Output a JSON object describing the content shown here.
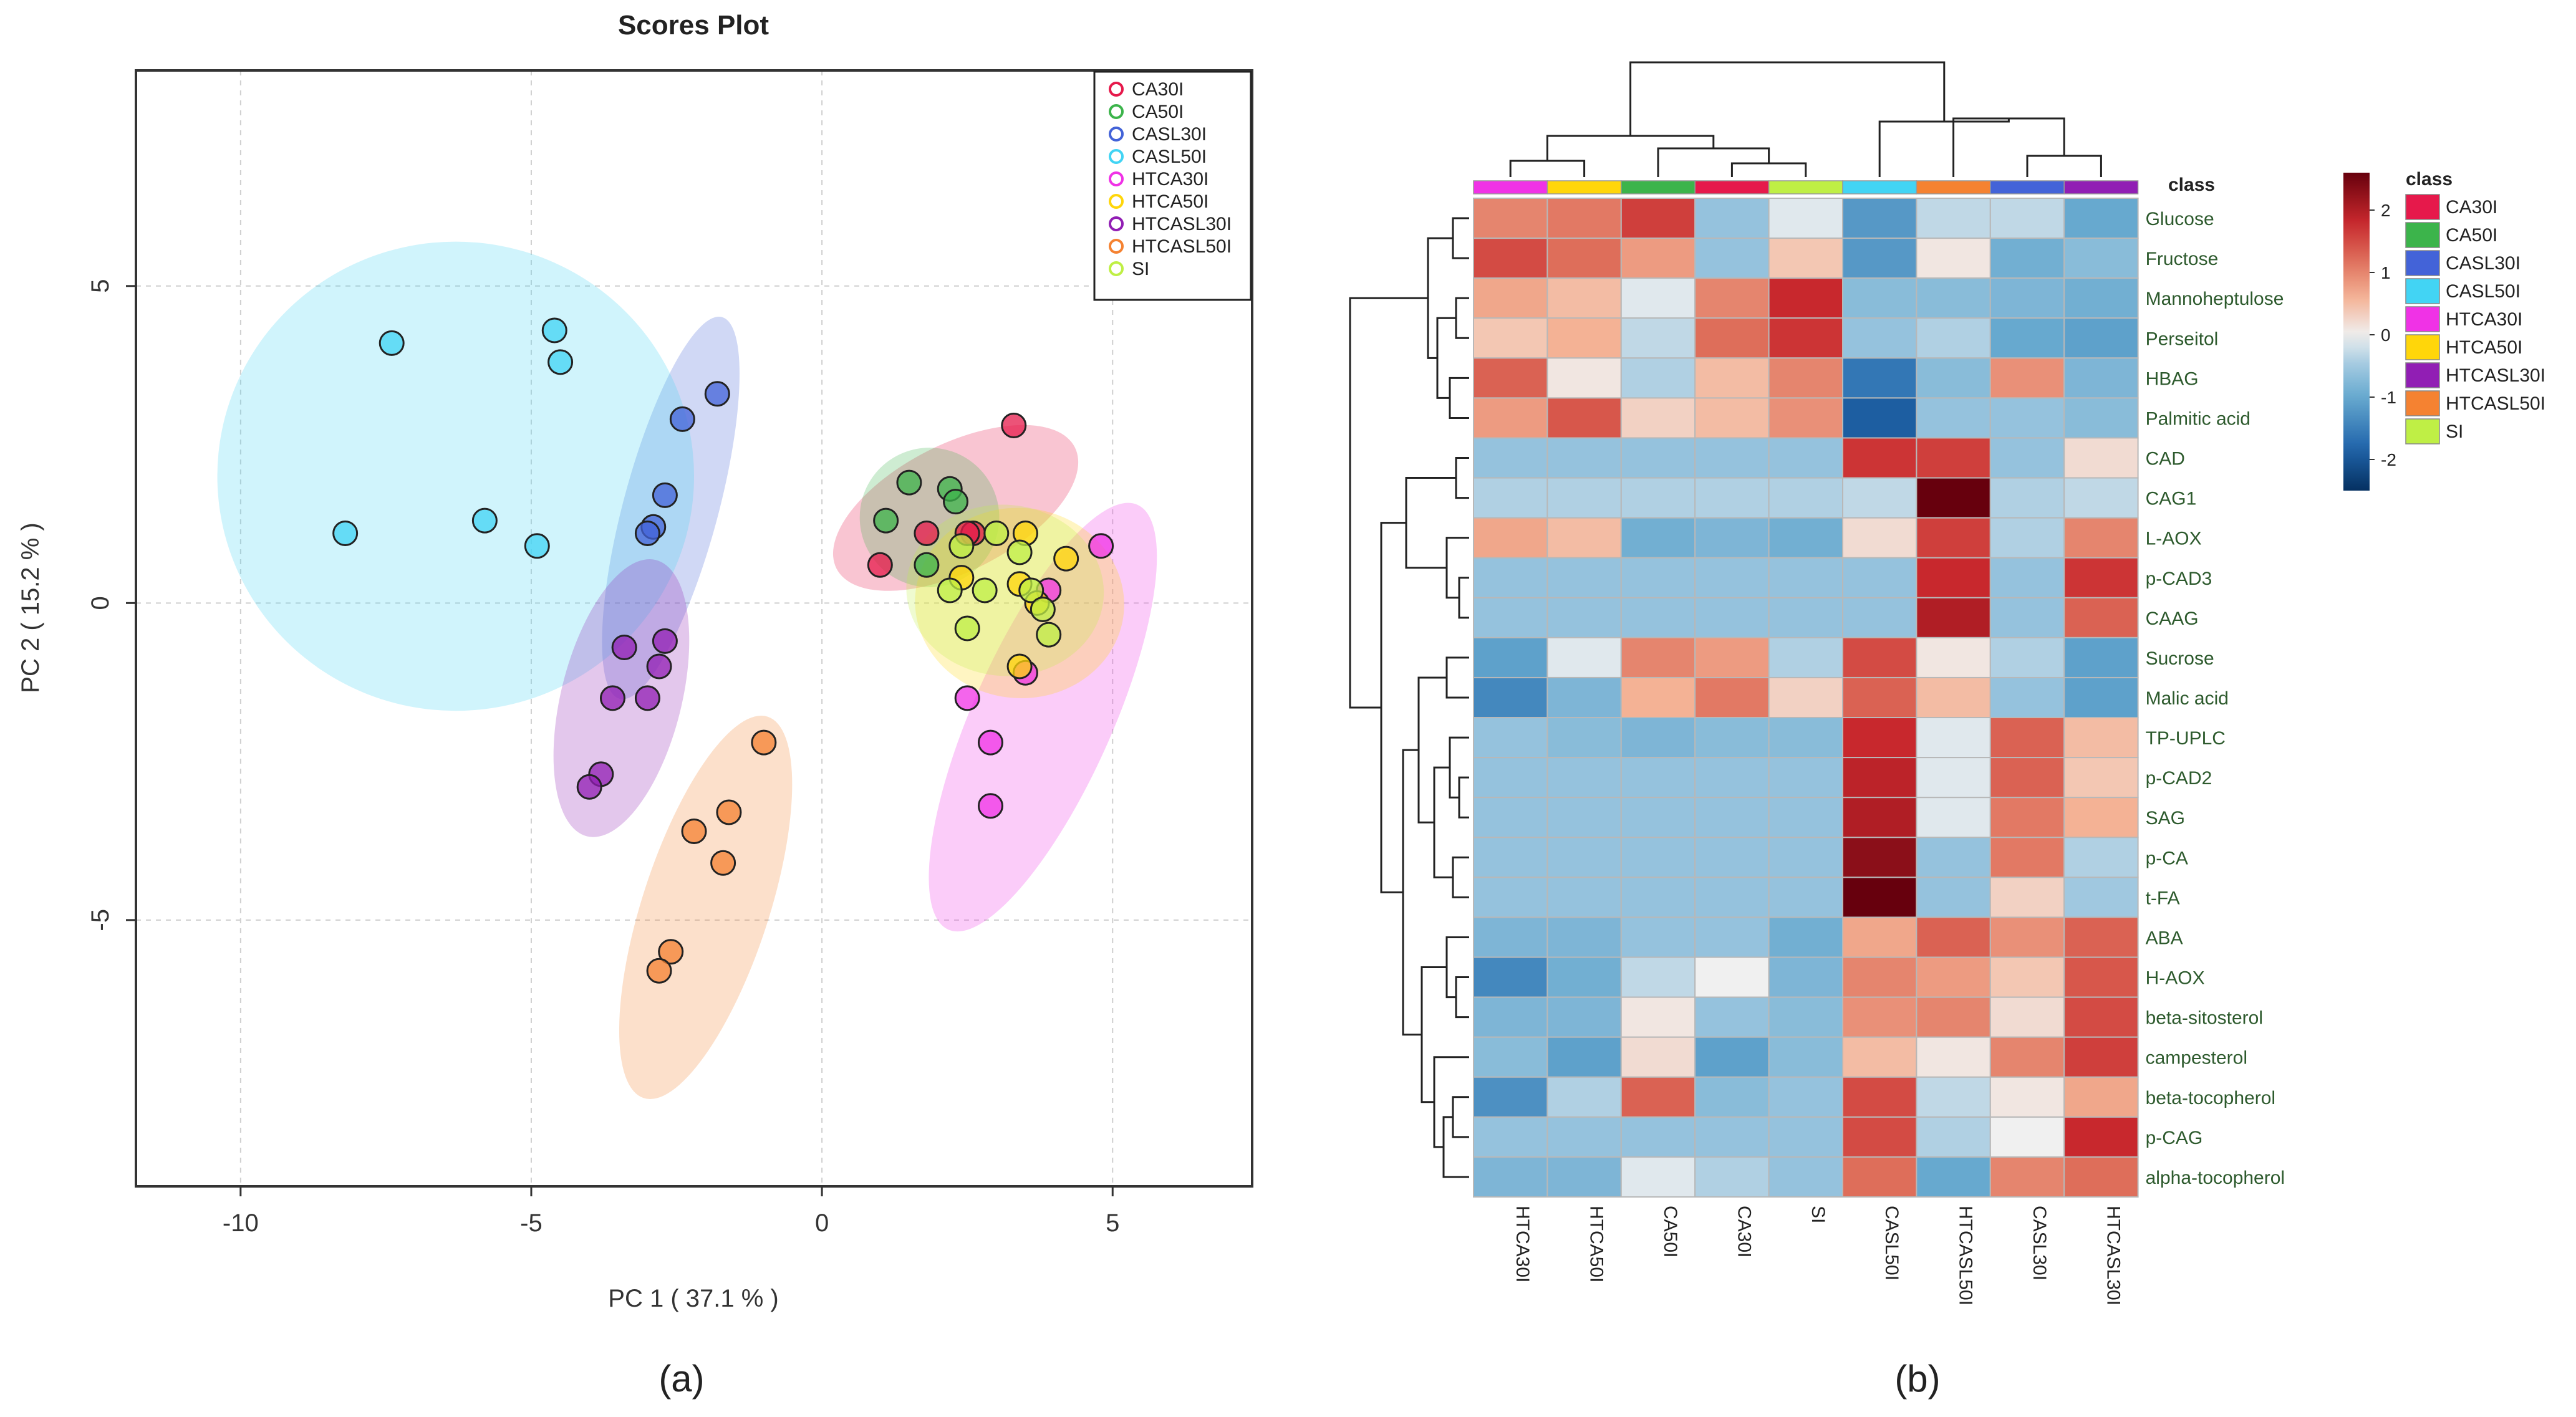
{
  "colors": {
    "CA30I": "#e6194b",
    "CA50I": "#3cb44b",
    "CASL30I": "#4363d8",
    "CASL50I": "#42d4f4",
    "HTCA30I": "#f032e6",
    "HTCA50I": "#ffd60a",
    "HTCASL30I": "#911eb4",
    "HTCASL50I": "#f58231",
    "SI": "#bfef45"
  },
  "chart_data": [
    {
      "type": "scatter",
      "title": "Scores Plot",
      "xlabel": "PC 1 ( 37.1 % )",
      "ylabel": "PC 2 ( 15.2 % )",
      "xlim": [
        -11.8,
        7.4
      ],
      "ylim": [
        -9.2,
        8.4
      ],
      "xticks": [
        -10,
        -5,
        0,
        5
      ],
      "yticks": [
        5,
        0,
        -5
      ],
      "grid": true,
      "legend_position": "top-right",
      "caption": "(a)",
      "series": [
        {
          "name": "CA30I",
          "x": [
            3.3,
            1.0,
            1.8,
            2.6,
            2.5
          ],
          "y": [
            2.8,
            0.6,
            1.1,
            1.1,
            1.1
          ],
          "ellipse": {
            "cx": 2.3,
            "cy": 1.5,
            "rx": 4.6,
            "ry": 1.0,
            "angle": 27
          }
        },
        {
          "name": "CA50I",
          "x": [
            1.1,
            1.5,
            2.2,
            2.3,
            1.8
          ],
          "y": [
            1.3,
            1.9,
            1.8,
            1.6,
            0.6
          ],
          "ellipse": {
            "cx": 1.85,
            "cy": 1.35,
            "rx": 2.4,
            "ry": 1.1,
            "angle": -20
          }
        },
        {
          "name": "CASL30I",
          "x": [
            -1.8,
            -2.4,
            -2.7,
            -2.9,
            -3.0
          ],
          "y": [
            3.3,
            2.9,
            1.7,
            1.2,
            1.1
          ],
          "ellipse": {
            "cx": -2.6,
            "cy": 1.5,
            "rx": 6.8,
            "ry": 0.75,
            "angle": 75
          }
        },
        {
          "name": "CASL50I",
          "x": [
            -7.4,
            -4.6,
            -4.5,
            -5.8,
            -4.9,
            -8.2
          ],
          "y": [
            4.1,
            4.3,
            3.8,
            1.3,
            0.9,
            1.1
          ],
          "ellipse": {
            "cx": -6.3,
            "cy": 2.0,
            "rx": 8.2,
            "ry": 3.7,
            "angle": 0
          }
        },
        {
          "name": "HTCA30I",
          "x": [
            4.8,
            3.9,
            3.5,
            2.5,
            2.9,
            2.9
          ],
          "y": [
            0.9,
            0.2,
            -1.1,
            -1.5,
            -2.2,
            -3.2
          ],
          "ellipse": {
            "cx": 3.8,
            "cy": -1.8,
            "rx": 8.0,
            "ry": 1.1,
            "angle": 66
          }
        },
        {
          "name": "HTCA50I",
          "x": [
            3.5,
            4.2,
            2.4,
            3.4,
            3.7,
            3.4
          ],
          "y": [
            1.1,
            0.7,
            0.4,
            0.3,
            0.0,
            -1.0
          ],
          "ellipse": {
            "cx": 3.4,
            "cy": 0.0,
            "rx": 3.6,
            "ry": 1.5,
            "angle": -5
          }
        },
        {
          "name": "HTCASL30I",
          "x": [
            -2.7,
            -2.8,
            -3.4,
            -3.0,
            -3.6,
            -3.8,
            -4.0
          ],
          "y": [
            -0.6,
            -1.0,
            -0.7,
            -1.5,
            -1.5,
            -2.7,
            -2.9
          ],
          "ellipse": {
            "cx": -3.45,
            "cy": -1.5,
            "rx": 4.9,
            "ry": 0.95,
            "angle": 76
          }
        },
        {
          "name": "HTCASL50I",
          "x": [
            -1.0,
            -1.6,
            -2.2,
            -1.7,
            -2.6,
            -2.8
          ],
          "y": [
            -2.2,
            -3.3,
            -3.6,
            -4.1,
            -5.5,
            -5.8
          ],
          "ellipse": {
            "cx": -2.0,
            "cy": -4.8,
            "rx": 6.9,
            "ry": 1.0,
            "angle": 72
          }
        },
        {
          "name": "SI",
          "x": [
            3.0,
            2.4,
            2.8,
            3.4,
            3.6,
            2.2,
            2.5,
            3.8,
            3.9
          ],
          "y": [
            1.1,
            0.9,
            0.2,
            0.8,
            0.2,
            0.2,
            -0.4,
            -0.1,
            -0.5
          ],
          "ellipse": {
            "cx": 3.15,
            "cy": 0.2,
            "rx": 3.4,
            "ry": 1.35,
            "angle": -5
          }
        }
      ]
    },
    {
      "type": "heatmap",
      "caption": "(b)",
      "class_label": "class",
      "legend_title": "class",
      "colorbar_ticks": [
        2,
        1,
        0,
        -1,
        -2
      ],
      "colorbar_range": [
        -2.5,
        2.6
      ],
      "legend_classes": [
        "CA30I",
        "CA50I",
        "CASL30I",
        "CASL50I",
        "HTCA30I",
        "HTCA50I",
        "HTCASL30I",
        "HTCASL50I",
        "SI"
      ],
      "columns": [
        "HTCA30I",
        "HTCA50I",
        "CA50I",
        "CA30I",
        "SI",
        "CASL50I",
        "HTCASL50I",
        "CASL30I",
        "HTCASL30I"
      ],
      "rows": [
        "Glucose",
        "Fructose",
        "Mannoheptulose",
        "Perseitol",
        "HBAG",
        "Palmitic acid",
        "CAD",
        "CAG1",
        "L-AOX",
        "p-CAD3",
        "CAAG",
        "Sucrose",
        "Malic acid",
        "TP-UPLC",
        "p-CAD2",
        "SAG",
        "p-CA",
        "t-FA",
        "ABA",
        "H-AOX",
        "beta-sitosterol",
        "campesterol",
        "beta-tocopherol",
        "p-CAG",
        "alpha-tocopherol"
      ],
      "values": [
        [
          1.0,
          1.1,
          1.6,
          -0.6,
          -0.1,
          -1.2,
          -0.3,
          -0.3,
          -1.0
        ],
        [
          1.5,
          1.2,
          0.8,
          -0.6,
          0.4,
          -1.2,
          0.1,
          -0.9,
          -0.7
        ],
        [
          0.7,
          0.5,
          -0.1,
          1.0,
          1.8,
          -0.7,
          -0.7,
          -0.8,
          -0.9
        ],
        [
          0.4,
          0.6,
          -0.3,
          1.2,
          1.7,
          -0.6,
          -0.4,
          -1.0,
          -1.1
        ],
        [
          1.3,
          0.1,
          -0.4,
          0.5,
          1.0,
          -1.6,
          -0.7,
          0.9,
          -0.8
        ],
        [
          0.8,
          1.4,
          0.3,
          0.5,
          0.9,
          -1.9,
          -0.6,
          -0.6,
          -0.7
        ],
        [
          -0.6,
          -0.6,
          -0.6,
          -0.6,
          -0.6,
          1.7,
          1.6,
          -0.6,
          0.2
        ],
        [
          -0.4,
          -0.4,
          -0.4,
          -0.4,
          -0.4,
          -0.3,
          2.6,
          -0.4,
          -0.3
        ],
        [
          0.7,
          0.5,
          -0.9,
          -0.8,
          -0.9,
          0.2,
          1.6,
          -0.4,
          1.0
        ],
        [
          -0.6,
          -0.6,
          -0.6,
          -0.6,
          -0.6,
          -0.6,
          1.8,
          -0.6,
          1.7
        ],
        [
          -0.6,
          -0.6,
          -0.6,
          -0.6,
          -0.6,
          -0.6,
          2.0,
          -0.6,
          1.3
        ],
        [
          -1.1,
          -0.1,
          1.0,
          0.8,
          -0.4,
          1.5,
          0.1,
          -0.4,
          -1.1
        ],
        [
          -1.4,
          -0.8,
          0.6,
          1.1,
          0.3,
          1.3,
          0.5,
          -0.6,
          -1.1
        ],
        [
          -0.6,
          -0.7,
          -0.8,
          -0.7,
          -0.7,
          1.8,
          -0.1,
          1.3,
          0.5
        ],
        [
          -0.6,
          -0.6,
          -0.6,
          -0.6,
          -0.6,
          1.9,
          -0.1,
          1.3,
          0.4
        ],
        [
          -0.6,
          -0.6,
          -0.6,
          -0.6,
          -0.6,
          2.0,
          -0.1,
          1.1,
          0.6
        ],
        [
          -0.6,
          -0.6,
          -0.6,
          -0.6,
          -0.6,
          2.3,
          -0.6,
          1.1,
          -0.4
        ],
        [
          -0.6,
          -0.6,
          -0.6,
          -0.6,
          -0.6,
          2.6,
          -0.6,
          0.3,
          -0.5
        ],
        [
          -0.8,
          -0.8,
          -0.6,
          -0.6,
          -0.9,
          0.7,
          1.3,
          0.9,
          1.3
        ],
        [
          -1.4,
          -0.9,
          -0.3,
          0.0,
          -0.8,
          1.0,
          0.8,
          0.4,
          1.4
        ],
        [
          -0.8,
          -0.8,
          0.1,
          -0.6,
          -0.7,
          0.9,
          1.0,
          0.2,
          1.5
        ],
        [
          -0.7,
          -1.1,
          0.2,
          -1.1,
          -0.7,
          0.5,
          0.1,
          1.0,
          1.6
        ],
        [
          -1.3,
          -0.4,
          1.3,
          -0.7,
          -0.6,
          1.5,
          -0.3,
          0.1,
          0.7
        ],
        [
          -0.6,
          -0.6,
          -0.6,
          -0.6,
          -0.6,
          1.5,
          -0.4,
          0.0,
          1.8
        ],
        [
          -0.8,
          -0.8,
          -0.1,
          -0.4,
          -0.6,
          1.2,
          -1.0,
          1.0,
          1.2
        ]
      ]
    }
  ]
}
